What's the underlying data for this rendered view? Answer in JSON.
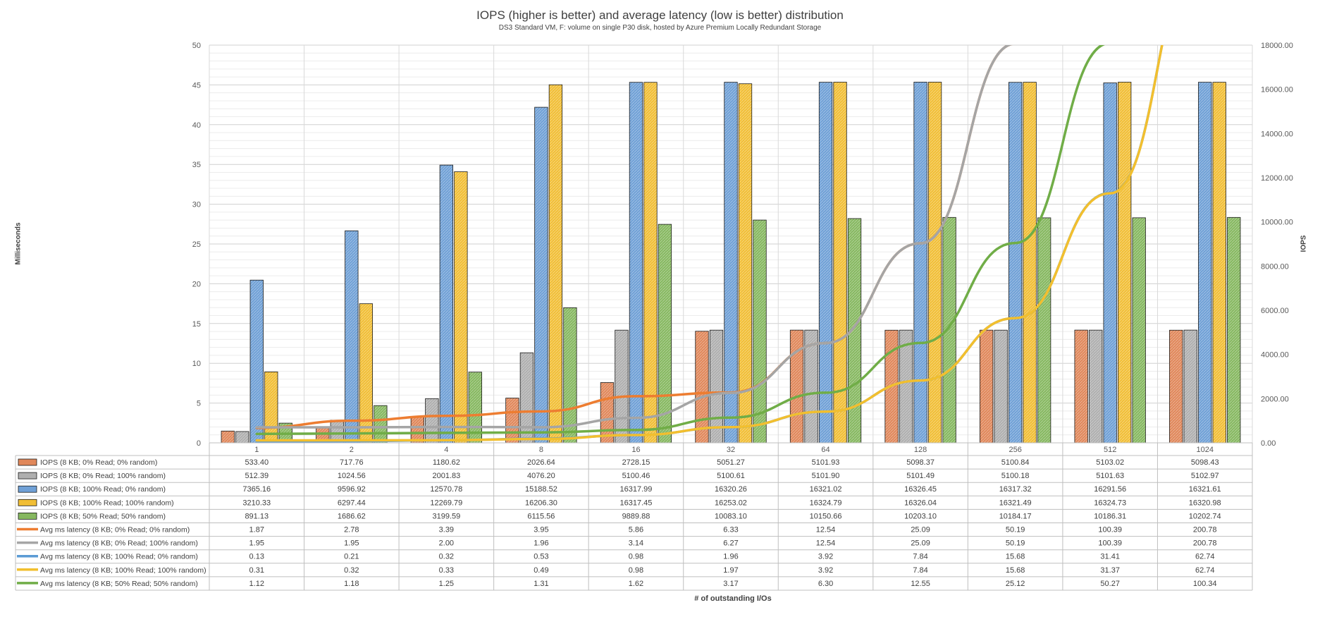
{
  "chart_data": {
    "type": "bar",
    "title": "IOPS (higher is better) and average latency (low is better) distribution",
    "subtitle": "DS3 Standard VM, F: volume on single P30 disk, hosted by Azure Premium Locally Redundant Storage",
    "ylabel_left": "Milliseconds",
    "ylabel_right": "IOPS",
    "xlabel": "# of outstanding I/Os",
    "ylim_left": [
      0,
      50
    ],
    "ylim_right": [
      0,
      18000
    ],
    "left_ticks": [
      "0",
      "5",
      "10",
      "15",
      "20",
      "25",
      "30",
      "35",
      "40",
      "45",
      "50"
    ],
    "right_ticks": [
      "0.00",
      "2000.00",
      "4000.00",
      "6000.00",
      "8000.00",
      "10000.00",
      "12000.00",
      "14000.00",
      "16000.00",
      "18000.00"
    ],
    "categories": [
      "1",
      "2",
      "4",
      "8",
      "16",
      "32",
      "64",
      "128",
      "256",
      "512",
      "1024"
    ],
    "bar_series": [
      {
        "name": "IOPS (8 KB; 0% Read; 0% random)",
        "color": "#E0875A",
        "values": [
          533.4,
          717.76,
          1180.62,
          2026.64,
          2728.15,
          5051.27,
          5101.93,
          5098.37,
          5100.84,
          5103.02,
          5098.43
        ],
        "labels": [
          "533.40",
          "717.76",
          "1180.62",
          "2026.64",
          "2728.15",
          "5051.27",
          "5101.93",
          "5098.37",
          "5100.84",
          "5103.02",
          "5098.43"
        ]
      },
      {
        "name": "IOPS (8 KB; 0% Read; 100% random)",
        "color": "#AFAFAF",
        "values": [
          512.39,
          1024.56,
          2001.83,
          4076.2,
          5100.46,
          5100.61,
          5101.9,
          5101.49,
          5100.18,
          5101.63,
          5102.97
        ],
        "labels": [
          "512.39",
          "1024.56",
          "2001.83",
          "4076.20",
          "5100.46",
          "5100.61",
          "5101.90",
          "5101.49",
          "5100.18",
          "5101.63",
          "5102.97"
        ]
      },
      {
        "name": "IOPS (8 KB; 100% Read; 0% random)",
        "color": "#6FA0D6",
        "values": [
          7365.16,
          9596.92,
          12570.78,
          15188.52,
          16317.99,
          16320.26,
          16321.02,
          16326.45,
          16317.32,
          16291.56,
          16321.61
        ],
        "labels": [
          "7365.16",
          "9596.92",
          "12570.78",
          "15188.52",
          "16317.99",
          "16320.26",
          "16321.02",
          "16326.45",
          "16317.32",
          "16291.56",
          "16321.61"
        ]
      },
      {
        "name": "IOPS (8 KB; 100% Read; 100% random)",
        "color": "#F1BE35",
        "values": [
          3210.33,
          6297.44,
          12269.79,
          16206.3,
          16317.45,
          16253.02,
          16324.79,
          16326.04,
          16321.49,
          16324.73,
          16320.98
        ],
        "labels": [
          "3210.33",
          "6297.44",
          "12269.79",
          "16206.30",
          "16317.45",
          "16253.02",
          "16324.79",
          "16326.04",
          "16321.49",
          "16324.73",
          "16320.98"
        ]
      },
      {
        "name": "IOPS (8 KB; 50% Read; 50% random)",
        "color": "#86B860",
        "values": [
          891.13,
          1686.62,
          3199.59,
          6115.56,
          9889.88,
          10083.1,
          10150.66,
          10203.1,
          10184.17,
          10186.31,
          10202.74
        ],
        "labels": [
          "891.13",
          "1686.62",
          "3199.59",
          "6115.56",
          "9889.88",
          "10083.10",
          "10150.66",
          "10203.10",
          "10184.17",
          "10186.31",
          "10202.74"
        ]
      }
    ],
    "line_series": [
      {
        "name": "Avg ms latency (8 KB; 0% Read; 0% random)",
        "color": "#ED7D31",
        "values": [
          1.87,
          2.78,
          3.39,
          3.95,
          5.86,
          6.33,
          12.54,
          25.09,
          50.19,
          100.39,
          200.78
        ],
        "labels": [
          "1.87",
          "2.78",
          "3.39",
          "3.95",
          "5.86",
          "6.33",
          "12.54",
          "25.09",
          "50.19",
          "100.39",
          "200.78"
        ]
      },
      {
        "name": "Avg ms latency (8 KB; 0% Read; 100% random)",
        "color": "#A5A5A5",
        "values": [
          1.95,
          1.95,
          2.0,
          1.96,
          3.14,
          6.27,
          12.54,
          25.09,
          50.19,
          100.39,
          200.78
        ],
        "labels": [
          "1.95",
          "1.95",
          "2.00",
          "1.96",
          "3.14",
          "6.27",
          "12.54",
          "25.09",
          "50.19",
          "100.39",
          "200.78"
        ]
      },
      {
        "name": "Avg ms latency (8 KB; 100% Read; 0% random)",
        "color": "#5B9BD5",
        "values": [
          0.13,
          0.21,
          0.32,
          0.53,
          0.98,
          1.96,
          3.92,
          7.84,
          15.68,
          31.41,
          62.74
        ],
        "labels": [
          "0.13",
          "0.21",
          "0.32",
          "0.53",
          "0.98",
          "1.96",
          "3.92",
          "7.84",
          "15.68",
          "31.41",
          "62.74"
        ]
      },
      {
        "name": "Avg ms latency (8 KB; 100% Read; 100% random)",
        "color": "#F2BF2E",
        "values": [
          0.31,
          0.32,
          0.33,
          0.49,
          0.98,
          1.97,
          3.92,
          7.84,
          15.68,
          31.37,
          62.74
        ],
        "labels": [
          "0.31",
          "0.32",
          "0.33",
          "0.49",
          "0.98",
          "1.97",
          "3.92",
          "7.84",
          "15.68",
          "31.37",
          "62.74"
        ]
      },
      {
        "name": "Avg ms latency (8 KB; 50% Read; 50% random)",
        "color": "#70AD47",
        "values": [
          1.12,
          1.18,
          1.25,
          1.31,
          1.62,
          3.17,
          6.3,
          12.55,
          25.12,
          50.27,
          100.34
        ],
        "labels": [
          "1.12",
          "1.18",
          "1.25",
          "1.31",
          "1.62",
          "3.17",
          "6.30",
          "12.55",
          "25.12",
          "50.27",
          "100.34"
        ]
      }
    ]
  }
}
